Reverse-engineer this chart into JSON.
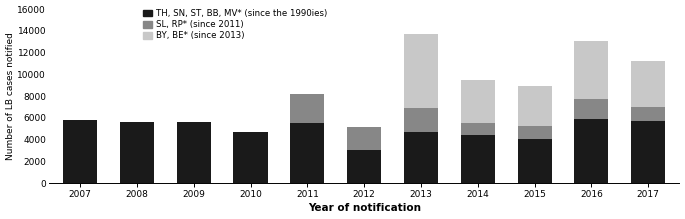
{
  "years": [
    2007,
    2008,
    2009,
    2010,
    2011,
    2012,
    2013,
    2014,
    2015,
    2016,
    2017
  ],
  "series1_black": [
    5800,
    5600,
    5600,
    4700,
    5500,
    3100,
    4700,
    4450,
    4050,
    5950,
    5750
  ],
  "series2_darkgray": [
    0,
    0,
    0,
    0,
    2700,
    2100,
    2250,
    1100,
    1200,
    1800,
    1300
  ],
  "series3_lightgray": [
    0,
    0,
    0,
    0,
    0,
    0,
    6800,
    3950,
    3650,
    5350,
    4200
  ],
  "color1": "#1a1a1a",
  "color2": "#878787",
  "color3": "#c8c8c8",
  "legend1": "TH, SN, ST, BB, MV* (since the 1990ies)",
  "legend2": "SL, RP* (since 2011)",
  "legend3": "BY, BE* (since 2013)",
  "ylabel": "Number of LB cases notified",
  "xlabel": "Year of notification",
  "ylim": [
    0,
    16000
  ],
  "yticks": [
    0,
    2000,
    4000,
    6000,
    8000,
    10000,
    12000,
    14000,
    16000
  ],
  "figsize": [
    6.85,
    2.19
  ],
  "dpi": 100
}
